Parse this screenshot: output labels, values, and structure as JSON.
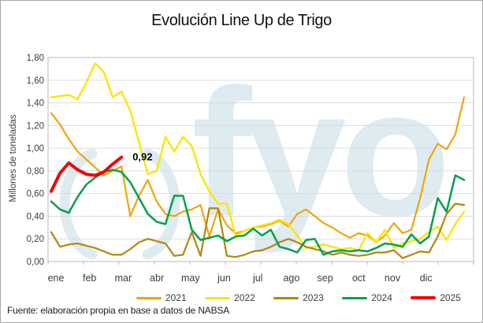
{
  "title": "Evolución Line Up de Trigo",
  "source": "Fuente: elaboración propia en base a datos de NABSA",
  "watermark": {
    "text": "fyo",
    "color": "#DEEBF1"
  },
  "colors": {
    "grid": "#dcdcdc",
    "plot_border": "#c4c4c4",
    "axis_text": "#3d3d3d",
    "annotation_text": "#000000"
  },
  "chart_data": {
    "type": "line",
    "title": "Evolución Line Up de Trigo",
    "xlabel": "",
    "ylabel": "Millones de toneladas",
    "ylim": [
      0,
      1.8
    ],
    "grid": true,
    "legend_position": "bottom",
    "y_ticks": [
      "0,00",
      "0,20",
      "0,40",
      "0,60",
      "0,80",
      "1,00",
      "1,20",
      "1,40",
      "1,60",
      "1,80"
    ],
    "months": [
      "ene",
      "feb",
      "mar",
      "abr",
      "may",
      "jun",
      "jul",
      "ago",
      "sep",
      "oct",
      "nov",
      "dic"
    ],
    "points_per_month": 4,
    "annotation": {
      "text": "0,92",
      "value": 0.92,
      "series": "2025"
    },
    "series": [
      {
        "name": "2021",
        "color": "#F1A40B",
        "width": 2.2,
        "values": [
          1.31,
          1.21,
          1.08,
          0.97,
          0.9,
          0.83,
          0.76,
          0.8,
          0.84,
          0.4,
          0.58,
          0.72,
          0.53,
          0.42,
          0.4,
          0.44,
          0.46,
          0.5,
          0.22,
          0.46,
          0.32,
          0.25,
          0.27,
          0.3,
          0.31,
          0.33,
          0.36,
          0.31,
          0.42,
          0.46,
          0.4,
          0.34,
          0.3,
          0.25,
          0.21,
          0.25,
          0.23,
          0.17,
          0.23,
          0.34,
          0.25,
          0.28,
          0.56,
          0.9,
          1.04,
          0.99,
          1.12,
          1.45
        ]
      },
      {
        "name": "2022",
        "color": "#FBE606",
        "width": 2.4,
        "values": [
          1.45,
          1.46,
          1.47,
          1.43,
          1.58,
          1.75,
          1.67,
          1.45,
          1.5,
          1.33,
          1.05,
          0.77,
          0.8,
          1.1,
          0.97,
          1.1,
          1.02,
          0.77,
          0.62,
          0.51,
          0.51,
          0.23,
          0.27,
          0.3,
          0.32,
          0.34,
          0.37,
          0.33,
          0.23,
          0.12,
          0.13,
          0.15,
          0.13,
          0.11,
          0.12,
          0.1,
          0.25,
          0.17,
          0.28,
          0.12,
          0.16,
          0.18,
          0.2,
          0.26,
          0.31,
          0.19,
          0.33,
          0.44
        ]
      },
      {
        "name": "2023",
        "color": "#B5860B",
        "width": 2.2,
        "values": [
          0.26,
          0.13,
          0.15,
          0.16,
          0.14,
          0.12,
          0.09,
          0.06,
          0.06,
          0.11,
          0.17,
          0.2,
          0.18,
          0.16,
          0.05,
          0.06,
          0.26,
          0.05,
          0.47,
          0.47,
          0.05,
          0.04,
          0.06,
          0.09,
          0.1,
          0.13,
          0.17,
          0.2,
          0.17,
          0.13,
          0.11,
          0.09,
          0.06,
          0.08,
          0.06,
          0.05,
          0.06,
          0.08,
          0.08,
          0.1,
          0.03,
          0.06,
          0.09,
          0.08,
          0.22,
          0.42,
          0.51,
          0.5
        ]
      },
      {
        "name": "2024",
        "color": "#00A04E",
        "width": 2.5,
        "values": [
          0.53,
          0.46,
          0.43,
          0.57,
          0.68,
          0.74,
          0.79,
          0.81,
          0.79,
          0.7,
          0.56,
          0.42,
          0.35,
          0.33,
          0.58,
          0.58,
          0.28,
          0.19,
          0.21,
          0.23,
          0.18,
          0.22,
          0.23,
          0.29,
          0.23,
          0.28,
          0.13,
          0.11,
          0.08,
          0.19,
          0.2,
          0.06,
          0.09,
          0.1,
          0.09,
          0.1,
          0.09,
          0.12,
          0.16,
          0.15,
          0.13,
          0.24,
          0.16,
          0.22,
          0.56,
          0.44,
          0.76,
          0.72
        ]
      },
      {
        "name": "2025",
        "color": "#F50000",
        "width": 4,
        "values": [
          0.62,
          0.78,
          0.87,
          0.81,
          0.77,
          0.76,
          0.79,
          0.86,
          0.92
        ]
      }
    ]
  }
}
